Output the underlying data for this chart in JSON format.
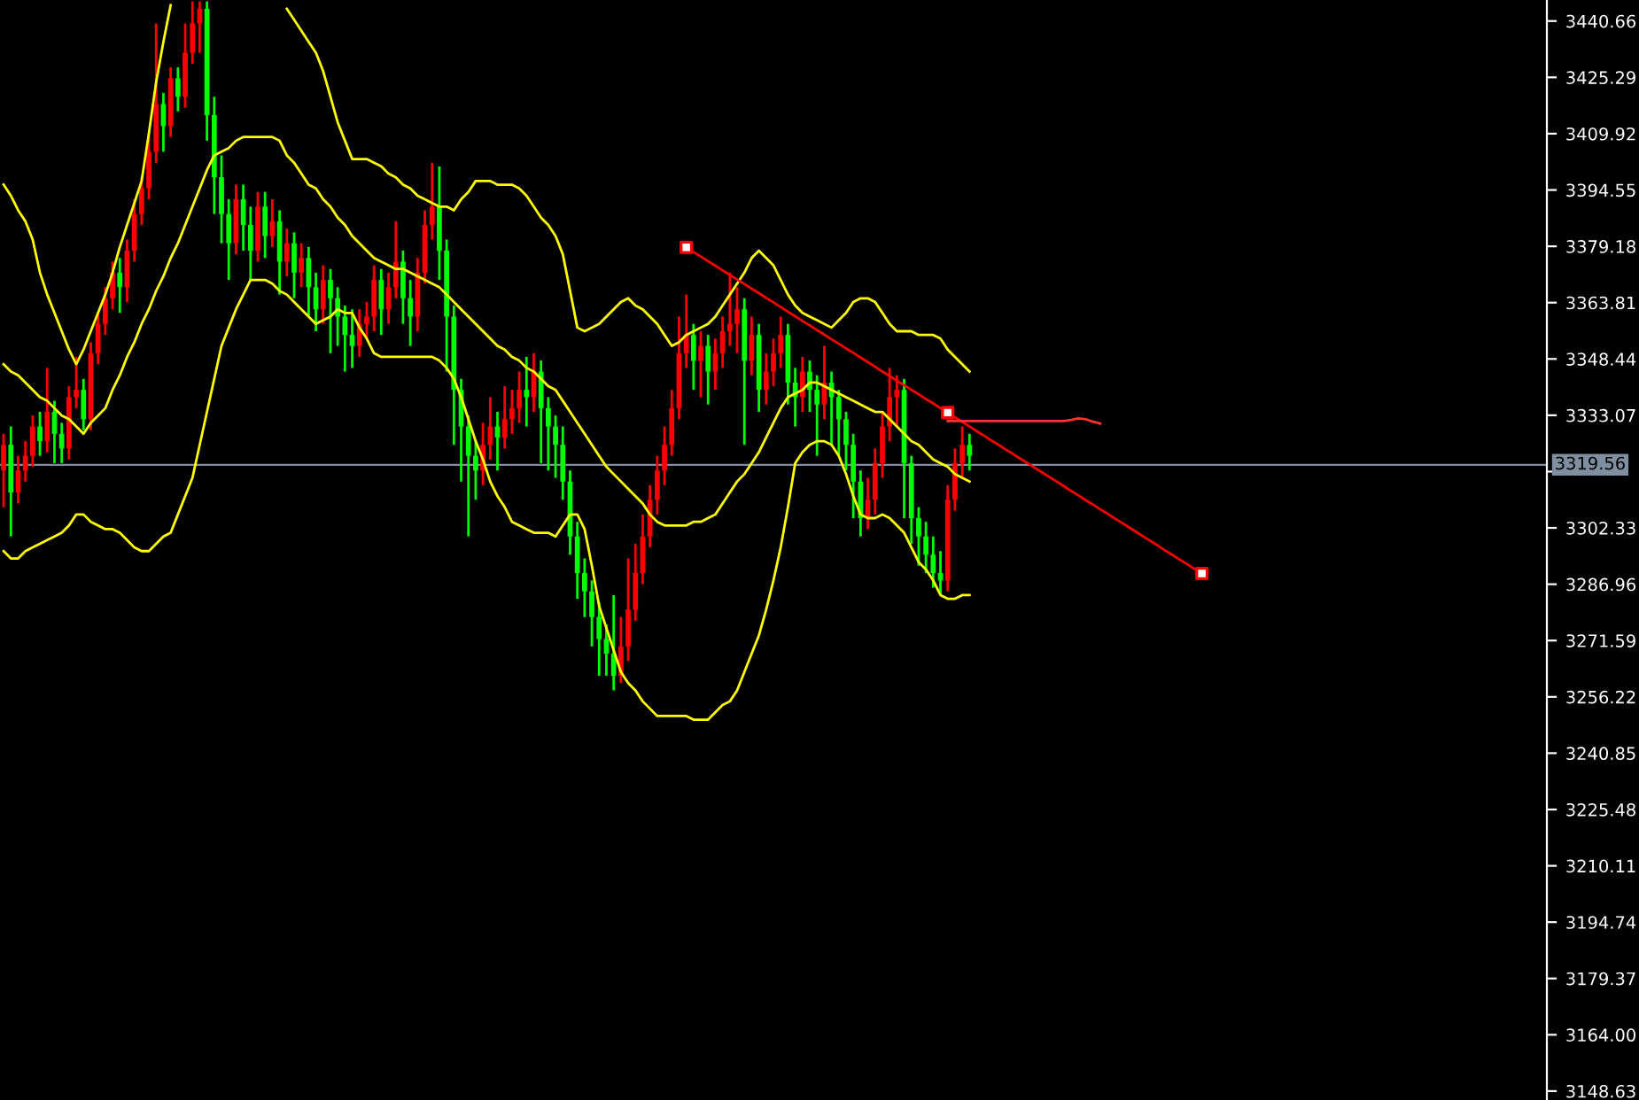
{
  "chart_data": {
    "type": "candlestick",
    "categories": [
      null,
      null,
      null,
      null,
      null,
      null,
      null,
      null,
      null,
      null,
      null,
      null,
      null,
      null,
      null,
      null,
      null,
      null,
      null,
      null,
      null,
      null,
      null,
      null,
      null,
      null,
      null,
      null,
      null,
      null,
      null,
      null,
      null,
      null,
      null,
      null,
      null,
      null,
      null,
      null,
      null,
      null,
      null,
      null,
      null,
      null,
      null,
      null,
      null,
      null,
      null,
      null,
      null,
      null,
      null,
      null,
      null,
      null,
      null,
      null,
      null,
      null,
      null,
      null,
      null,
      null,
      null,
      null,
      null,
      null,
      null,
      null,
      null,
      null,
      null,
      null,
      null,
      null,
      null,
      null,
      null,
      null,
      null,
      null,
      null,
      null,
      null,
      null,
      null,
      null,
      null,
      null,
      null,
      null,
      null,
      null,
      null,
      null,
      null,
      null,
      null,
      null,
      null,
      null,
      null,
      null,
      null,
      null,
      null,
      null,
      null,
      null,
      null,
      null,
      null,
      null,
      null,
      null,
      null,
      null,
      null,
      null,
      null,
      null,
      null,
      null,
      null,
      null,
      null,
      null,
      null,
      null,
      null,
      null,
      null,
      null,
      null,
      null,
      null,
      null,
      null,
      null,
      null,
      null,
      null,
      null,
      null,
      null,
      null,
      null,
      null,
      null,
      null,
      null,
      null,
      null,
      null,
      null,
      null,
      null,
      null,
      null,
      null,
      null,
      null,
      null,
      null,
      null,
      null,
      null,
      null,
      null,
      null,
      null,
      null,
      null,
      null,
      null,
      null,
      null,
      null,
      null,
      null,
      null,
      null,
      null,
      null,
      null,
      null,
      null,
      null,
      null,
      null,
      null,
      null,
      null,
      null,
      null,
      null,
      null,
      null,
      null,
      null,
      null,
      null,
      null,
      null,
      null,
      null,
      null,
      null,
      null,
      null
    ],
    "ohlc": [
      [
        3318,
        3328,
        3308,
        3325
      ],
      [
        3325,
        3330,
        3300,
        3312
      ],
      [
        3312,
        3322,
        3309,
        3318
      ],
      [
        3318,
        3326,
        3315,
        3322
      ],
      [
        3322,
        3333,
        3319,
        3330
      ],
      [
        3330,
        3334,
        3322,
        3326
      ],
      [
        3326,
        3346,
        3323,
        3334
      ],
      [
        3334,
        3337,
        3320,
        3328
      ],
      [
        3328,
        3331,
        3320,
        3324
      ],
      [
        3324,
        3341,
        3321,
        3338
      ],
      [
        3338,
        3349,
        3335,
        3340
      ],
      [
        3340,
        3343,
        3329,
        3332
      ],
      [
        3332,
        3353,
        3329,
        3350
      ],
      [
        3350,
        3361,
        3347,
        3358
      ],
      [
        3358,
        3368,
        3355,
        3365
      ],
      [
        3365,
        3375,
        3362,
        3372
      ],
      [
        3372,
        3376,
        3361,
        3368
      ],
      [
        3368,
        3381,
        3364,
        3378
      ],
      [
        3378,
        3392,
        3375,
        3388
      ],
      [
        3388,
        3398,
        3385,
        3395
      ],
      [
        3395,
        3410,
        3392,
        3405
      ],
      [
        3405,
        3440,
        3402,
        3418
      ],
      [
        3418,
        3421,
        3405,
        3412
      ],
      [
        3412,
        3428,
        3409,
        3425
      ],
      [
        3425,
        3428,
        3416,
        3420
      ],
      [
        3420,
        3440,
        3417,
        3432
      ],
      [
        3432,
        3446,
        3429,
        3440
      ],
      [
        3440,
        3446,
        3432,
        3444
      ],
      [
        3444,
        3446,
        3408,
        3415
      ],
      [
        3415,
        3420,
        3388,
        3398
      ],
      [
        3398,
        3404,
        3380,
        3388
      ],
      [
        3388,
        3392,
        3370,
        3380
      ],
      [
        3380,
        3396,
        3377,
        3392
      ],
      [
        3392,
        3396,
        3378,
        3385
      ],
      [
        3385,
        3390,
        3370,
        3378
      ],
      [
        3378,
        3394,
        3375,
        3390
      ],
      [
        3390,
        3394,
        3376,
        3382
      ],
      [
        3382,
        3392,
        3379,
        3386
      ],
      [
        3386,
        3389,
        3366,
        3375
      ],
      [
        3375,
        3384,
        3371,
        3380
      ],
      [
        3380,
        3383,
        3365,
        3372
      ],
      [
        3372,
        3380,
        3368,
        3376
      ],
      [
        3376,
        3379,
        3360,
        3368
      ],
      [
        3368,
        3372,
        3356,
        3362
      ],
      [
        3362,
        3374,
        3358,
        3370
      ],
      [
        3370,
        3373,
        3350,
        3365
      ],
      [
        3365,
        3368,
        3352,
        3360
      ],
      [
        3360,
        3363,
        3345,
        3355
      ],
      [
        3355,
        3362,
        3346,
        3352
      ],
      [
        3352,
        3362,
        3349,
        3358
      ],
      [
        3358,
        3364,
        3354,
        3360
      ],
      [
        3360,
        3374,
        3356,
        3370
      ],
      [
        3370,
        3373,
        3355,
        3362
      ],
      [
        3362,
        3372,
        3358,
        3368
      ],
      [
        3368,
        3386,
        3365,
        3375
      ],
      [
        3375,
        3378,
        3358,
        3365
      ],
      [
        3365,
        3370,
        3352,
        3360
      ],
      [
        3360,
        3376,
        3356,
        3372
      ],
      [
        3372,
        3389,
        3369,
        3385
      ],
      [
        3385,
        3402,
        3381,
        3390
      ],
      [
        3390,
        3401,
        3370,
        3378
      ],
      [
        3378,
        3381,
        3345,
        3360
      ],
      [
        3360,
        3363,
        3325,
        3340
      ],
      [
        3340,
        3343,
        3315,
        3330
      ],
      [
        3330,
        3333,
        3300,
        3322
      ],
      [
        3322,
        3326,
        3310,
        3318
      ],
      [
        3318,
        3331,
        3314,
        3325
      ],
      [
        3325,
        3338,
        3321,
        3330
      ],
      [
        3330,
        3334,
        3318,
        3327
      ],
      [
        3327,
        3341,
        3324,
        3332
      ],
      [
        3332,
        3340,
        3328,
        3335
      ],
      [
        3335,
        3345,
        3331,
        3340
      ],
      [
        3340,
        3349,
        3330,
        3338
      ],
      [
        3338,
        3350,
        3334,
        3345
      ],
      [
        3345,
        3348,
        3320,
        3335
      ],
      [
        3335,
        3338,
        3318,
        3330
      ],
      [
        3330,
        3333,
        3316,
        3325
      ],
      [
        3325,
        3330,
        3310,
        3315
      ],
      [
        3315,
        3318,
        3295,
        3300
      ],
      [
        3300,
        3304,
        3283,
        3290
      ],
      [
        3290,
        3294,
        3278,
        3285
      ],
      [
        3285,
        3288,
        3270,
        3278
      ],
      [
        3278,
        3282,
        3262,
        3272
      ],
      [
        3272,
        3276,
        3262,
        3268
      ],
      [
        3268,
        3284,
        3258,
        3262
      ],
      [
        3262,
        3278,
        3260,
        3270
      ],
      [
        3270,
        3294,
        3266,
        3280
      ],
      [
        3280,
        3298,
        3277,
        3290
      ],
      [
        3290,
        3306,
        3287,
        3300
      ],
      [
        3300,
        3314,
        3297,
        3310
      ],
      [
        3310,
        3322,
        3306,
        3318
      ],
      [
        3318,
        3330,
        3314,
        3325
      ],
      [
        3325,
        3340,
        3322,
        3335
      ],
      [
        3335,
        3360,
        3332,
        3350
      ],
      [
        3350,
        3366,
        3346,
        3355
      ],
      [
        3355,
        3358,
        3340,
        3348
      ],
      [
        3348,
        3356,
        3338,
        3352
      ],
      [
        3352,
        3355,
        3336,
        3345
      ],
      [
        3345,
        3354,
        3340,
        3350
      ],
      [
        3350,
        3360,
        3346,
        3356
      ],
      [
        3356,
        3372,
        3352,
        3358
      ],
      [
        3358,
        3368,
        3350,
        3362
      ],
      [
        3362,
        3365,
        3325,
        3348
      ],
      [
        3348,
        3360,
        3344,
        3355
      ],
      [
        3355,
        3358,
        3334,
        3340
      ],
      [
        3340,
        3350,
        3336,
        3345
      ],
      [
        3345,
        3354,
        3341,
        3350
      ],
      [
        3350,
        3360,
        3346,
        3355
      ],
      [
        3355,
        3358,
        3336,
        3342
      ],
      [
        3342,
        3346,
        3330,
        3338
      ],
      [
        3338,
        3349,
        3334,
        3345
      ],
      [
        3345,
        3348,
        3334,
        3340
      ],
      [
        3340,
        3344,
        3322,
        3336
      ],
      [
        3336,
        3352,
        3332,
        3342
      ],
      [
        3342,
        3345,
        3325,
        3338
      ],
      [
        3338,
        3340,
        3322,
        3332
      ],
      [
        3332,
        3334,
        3318,
        3325
      ],
      [
        3325,
        3328,
        3305,
        3315
      ],
      [
        3315,
        3318,
        3300,
        3305
      ],
      [
        3305,
        3316,
        3302,
        3310
      ],
      [
        3310,
        3324,
        3306,
        3320
      ],
      [
        3320,
        3334,
        3316,
        3330
      ],
      [
        3330,
        3346,
        3326,
        3338
      ],
      [
        3338,
        3344,
        3330,
        3340
      ],
      [
        3340,
        3343,
        3305,
        3320
      ],
      [
        3320,
        3322,
        3298,
        3305
      ],
      [
        3305,
        3308,
        3292,
        3300
      ],
      [
        3300,
        3304,
        3290,
        3295
      ],
      [
        3295,
        3300,
        3286,
        3290
      ],
      [
        3290,
        3296,
        3284,
        3288
      ],
      [
        3288,
        3314,
        3285,
        3310
      ],
      [
        3310,
        3324,
        3307,
        3320
      ],
      [
        3320,
        3330,
        3316,
        3325
      ],
      [
        3325,
        3328,
        3318,
        3322
      ],
      null,
      null,
      null,
      null,
      null,
      null,
      null,
      null,
      null,
      null,
      null,
      null,
      null,
      null,
      null,
      null,
      null,
      null,
      null,
      null,
      null,
      null,
      null,
      null,
      null,
      null,
      null,
      null,
      null,
      null,
      null,
      null,
      null,
      null,
      null,
      null,
      null,
      null,
      null,
      null,
      null,
      null,
      null,
      null,
      null,
      null,
      null,
      null,
      null,
      null,
      null,
      null,
      null,
      null,
      null,
      null,
      null,
      null,
      null,
      null,
      null,
      null,
      null,
      null,
      null,
      null,
      null,
      null,
      null,
      null,
      null,
      null,
      null,
      null,
      null,
      null,
      null,
      null,
      null
    ],
    "colors": [
      "#ff0000",
      "#00ff00",
      "#ff0000",
      "#ff0000",
      "#ff0000",
      "#00ff00",
      "#ff0000",
      "#00ff00",
      "#00ff00",
      "#ff0000",
      "#ff0000",
      "#00ff00",
      "#ff0000",
      "#ff0000",
      "#ff0000",
      "#ff0000",
      "#00ff00",
      "#ff0000",
      "#ff0000",
      "#ff0000",
      "#ff0000",
      "#ff0000",
      "#00ff00",
      "#ff0000",
      "#00ff00",
      "#ff0000",
      "#ff0000",
      "#ff0000",
      "#00ff00",
      "#00ff00",
      "#00ff00",
      "#00ff00",
      "#ff0000",
      "#00ff00",
      "#00ff00",
      "#ff0000",
      "#00ff00",
      "#ff0000",
      "#00ff00",
      "#ff0000",
      "#00ff00",
      "#ff0000",
      "#00ff00",
      "#00ff00",
      "#ff0000",
      "#00ff00",
      "#00ff00",
      "#00ff00",
      "#00ff00",
      "#ff0000",
      "#ff0000",
      "#ff0000",
      "#00ff00",
      "#ff0000",
      "#ff0000",
      "#00ff00",
      "#00ff00",
      "#ff0000",
      "#ff0000",
      "#ff0000",
      "#00ff00",
      "#00ff00",
      "#00ff00",
      "#00ff00",
      "#00ff00",
      "#00ff00",
      "#ff0000",
      "#ff0000",
      "#00ff00",
      "#ff0000",
      "#ff0000",
      "#ff0000",
      "#00ff00",
      "#ff0000",
      "#00ff00",
      "#00ff00",
      "#00ff00",
      "#00ff00",
      "#00ff00",
      "#00ff00",
      "#00ff00",
      "#00ff00",
      "#00ff00",
      "#00ff00",
      "#00ff00",
      "#ff0000",
      "#ff0000",
      "#ff0000",
      "#ff0000",
      "#ff0000",
      "#ff0000",
      "#ff0000",
      "#ff0000",
      "#ff0000",
      "#ff0000",
      "#00ff00",
      "#ff0000",
      "#00ff00",
      "#ff0000",
      "#ff0000",
      "#ff0000",
      "#ff0000",
      "#00ff00",
      "#ff0000",
      "#00ff00",
      "#ff0000",
      "#ff0000",
      "#ff0000",
      "#00ff00",
      "#00ff00",
      "#ff0000",
      "#00ff00",
      "#00ff00",
      "#ff0000",
      "#00ff00",
      "#00ff00",
      "#00ff00",
      "#00ff00",
      "#00ff00",
      "#ff0000",
      "#ff0000",
      "#ff0000",
      "#ff0000",
      "#ff0000",
      "#00ff00",
      "#00ff00",
      "#00ff00",
      "#00ff00",
      "#00ff00",
      "#00ff00",
      "#ff0000",
      "#ff0000",
      "#ff0000",
      "#00ff00",
      null,
      null,
      null,
      null,
      null,
      null,
      null,
      null,
      null,
      null,
      null,
      null,
      null,
      null,
      null,
      null,
      null,
      null,
      null,
      null,
      null,
      null,
      null,
      null,
      null,
      null,
      null,
      null,
      null,
      null,
      null,
      null,
      null,
      null,
      null,
      null,
      null,
      null,
      null,
      null,
      null,
      null,
      null,
      null,
      null,
      null,
      null,
      null,
      null,
      null,
      null,
      null,
      null,
      null,
      null,
      null,
      null,
      null,
      null,
      null,
      null,
      null,
      null,
      null,
      null,
      null,
      null,
      null,
      null,
      null,
      null,
      null,
      null,
      null,
      null,
      null,
      null,
      null,
      null
    ],
    "series": [
      {
        "type": "line",
        "color": "#ffff00",
        "values": [
          3347,
          3345,
          3344,
          3342,
          3340,
          3338,
          3337,
          3335,
          3333,
          3332,
          3330,
          3328,
          3331,
          3333,
          3335,
          3340,
          3344,
          3349,
          3353,
          3358,
          3362,
          3367,
          3371,
          3376,
          3380,
          3385,
          3390,
          3395,
          3400,
          3404,
          3405,
          3406,
          3408,
          3409,
          3409,
          3409,
          3409,
          3409,
          3408,
          3404,
          3402,
          3399,
          3396,
          3395,
          3392,
          3390,
          3387,
          3385,
          3382,
          3380,
          3378,
          3376,
          3375,
          3374,
          3373,
          3373,
          3372,
          3371,
          3370,
          3369,
          3368,
          3366,
          3364,
          3362,
          3360,
          3358,
          3356,
          3354,
          3352,
          3351,
          3349,
          3348,
          3346,
          3345,
          3343,
          3341,
          3340,
          3337,
          3334,
          3331,
          3328,
          3325,
          3322,
          3319,
          3317,
          3315,
          3313,
          3311,
          3309,
          3306,
          3304,
          3303,
          3303,
          3303,
          3303,
          3304,
          3304,
          3305,
          3306,
          3309,
          3312,
          3315,
          3317,
          3320,
          3323,
          3327,
          3331,
          3335,
          3338,
          3339,
          3340,
          3342,
          3342,
          3341,
          3340,
          3339,
          3338,
          3337,
          3336,
          3335,
          3334,
          3334,
          3332,
          3330,
          3328,
          3326,
          3325,
          3323,
          3321,
          3320,
          3319,
          3317,
          3316,
          3315,
          null,
          null,
          null,
          null,
          null,
          null,
          null,
          null,
          null,
          null,
          null,
          null,
          null,
          null,
          null,
          null,
          null,
          null,
          null,
          null,
          null,
          null,
          null,
          null,
          null,
          null,
          null,
          null,
          null,
          null,
          null,
          null,
          null,
          null,
          null,
          null,
          null,
          null,
          null,
          null,
          null,
          null,
          null,
          null,
          null,
          null,
          null,
          null,
          null,
          null,
          null,
          null,
          null,
          null,
          null,
          null,
          null,
          null,
          null,
          null,
          null,
          null,
          null,
          null,
          null,
          null,
          null,
          null,
          null,
          null,
          null,
          null,
          null,
          null,
          null,
          null,
          null,
          null,
          null
        ]
      },
      {
        "type": "line",
        "color": "#ffff00",
        "values": [
          3396,
          3393,
          3389,
          3386,
          3381,
          3372,
          3366,
          3361,
          3356,
          3351,
          3347,
          3351,
          3356,
          3361,
          3366,
          3372,
          3379,
          3385,
          3391,
          3397,
          3410,
          3424,
          3435,
          3445,
          null,
          null,
          null,
          null,
          null,
          null,
          null,
          null,
          null,
          null,
          null,
          null,
          null,
          null,
          null,
          3444,
          3441,
          3438,
          3435,
          3432,
          3427,
          3420,
          3413,
          3408,
          3403,
          3403,
          3403,
          3402,
          3401,
          3399,
          3398,
          3396,
          3395,
          3393,
          3392,
          3391,
          3390,
          3390,
          3389,
          3392,
          3394,
          3397,
          3397,
          3397,
          3396,
          3396,
          3396,
          3395,
          3393,
          3390,
          3387,
          3385,
          3382,
          3377,
          3367,
          3357,
          3356,
          3357,
          3358,
          3360,
          3362,
          3364,
          3365,
          3363,
          3362,
          3360,
          3358,
          3355,
          3352,
          3353,
          3355,
          3356,
          3357,
          3358,
          3360,
          3363,
          3366,
          3369,
          3372,
          3376,
          3378,
          3376,
          3374,
          3370,
          3366,
          3363,
          3361,
          3360,
          3359,
          3358,
          3357,
          3359,
          3361,
          3364,
          3365,
          3365,
          3364,
          3361,
          3358,
          3356,
          3356,
          3356,
          3355,
          3355,
          3355,
          3354,
          3351,
          3349,
          3347,
          3345,
          null,
          null,
          null,
          null,
          null,
          null,
          null,
          null,
          null,
          null,
          null,
          null,
          null,
          null,
          null,
          null,
          null,
          null,
          null,
          null,
          null,
          null,
          null,
          null,
          null,
          null,
          null,
          null,
          null,
          null,
          null,
          null,
          null,
          null,
          null,
          null,
          null,
          null,
          null,
          null,
          null,
          null,
          null,
          null,
          null,
          null,
          null,
          null,
          null,
          null,
          null,
          null,
          null,
          null,
          null,
          null,
          null,
          null,
          null,
          null,
          null,
          null,
          null,
          null,
          null,
          null,
          null,
          null,
          null,
          null,
          null,
          null,
          null,
          null,
          null,
          null,
          null,
          null,
          null
        ]
      },
      {
        "type": "line",
        "color": "#ffff00",
        "values": [
          3296,
          3294,
          3294,
          3296,
          3297,
          3298,
          3299,
          3300,
          3301,
          3303,
          3306,
          3306,
          3304,
          3303,
          3302,
          3302,
          3301,
          3299,
          3297,
          3296,
          3296,
          3298,
          3300,
          3301,
          3306,
          3311,
          3316,
          3325,
          3334,
          3343,
          3352,
          3357,
          3362,
          3366,
          3370,
          3370,
          3370,
          3369,
          3367,
          3366,
          3364,
          3362,
          3360,
          3358,
          3359,
          3360,
          3362,
          3361,
          3361,
          3357,
          3354,
          3350,
          3349,
          3349,
          3349,
          3349,
          3349,
          3349,
          3349,
          3349,
          3348,
          3346,
          3343,
          3338,
          3332,
          3326,
          3321,
          3315,
          3311,
          3308,
          3304,
          3303,
          3302,
          3301,
          3301,
          3301,
          3300,
          3303,
          3306,
          3306,
          3302,
          3292,
          3281,
          3275,
          3269,
          3263,
          3260,
          3258,
          3255,
          3253,
          3251,
          3251,
          3251,
          3251,
          3251,
          3250,
          3250,
          3250,
          3252,
          3254,
          3255,
          3258,
          3263,
          3268,
          3273,
          3280,
          3288,
          3297,
          3308,
          3320,
          3323,
          3325,
          3326,
          3326,
          3325,
          3322,
          3317,
          3311,
          3306,
          3305,
          3305,
          3306,
          3305,
          3303,
          3301,
          3297,
          3293,
          3291,
          3288,
          3284,
          3283,
          3283,
          3284,
          3284,
          null,
          null,
          null,
          null,
          null,
          null,
          null,
          null,
          null,
          null,
          null,
          null,
          null,
          null,
          null,
          null,
          null,
          null,
          null,
          null,
          null,
          null,
          null,
          null,
          null,
          null,
          null,
          null,
          null,
          null,
          null,
          null,
          null,
          null,
          null,
          null,
          null,
          null,
          null,
          null,
          null,
          null,
          null,
          null,
          null,
          null,
          null,
          null,
          null,
          null,
          null,
          null,
          null,
          null,
          null,
          null,
          null,
          null,
          null,
          null,
          null,
          null,
          null,
          null,
          null,
          null,
          null,
          null,
          null,
          null,
          null,
          null,
          null,
          null,
          null,
          null,
          null,
          null,
          null
        ]
      },
      {
        "type": "line",
        "color": "#ff0000",
        "values": [
          null,
          null,
          null,
          null,
          null,
          null,
          null,
          null,
          null,
          null,
          null,
          null,
          null,
          null,
          null,
          null,
          null,
          null,
          null,
          null,
          null,
          null,
          null,
          null,
          null,
          null,
          null,
          null,
          null,
          null,
          null,
          null,
          null,
          null,
          null,
          null,
          null,
          null,
          null,
          null,
          null,
          null,
          null,
          null,
          null,
          null,
          null,
          null,
          null,
          null,
          null,
          null,
          null,
          null,
          null,
          null,
          null,
          null,
          null,
          null,
          null,
          null,
          null,
          null,
          null,
          null,
          null,
          null,
          null,
          null,
          null,
          null,
          null,
          null,
          null,
          null,
          null,
          null,
          null,
          null,
          null,
          null,
          null,
          null,
          null,
          null,
          null,
          null,
          null,
          null,
          null,
          null,
          null,
          null,
          3378.9,
          3377.6,
          3376.4,
          3375.1,
          3373.9,
          3372.6,
          3371.4,
          3370.1,
          3368.9,
          3367.6,
          3366.4,
          3365.1,
          3363.9,
          3362.6,
          3361.3,
          3360.1,
          3358.8,
          3357.6,
          3356.3,
          3355.1,
          3353.8,
          3352.6,
          3351.3,
          3350.1,
          3348.8,
          3347.6,
          3346.3,
          3345.0,
          3343.8,
          3342.5,
          3341.3,
          3340.0,
          3338.8,
          3337.5,
          3336.3,
          3335.0,
          3333.8,
          3332.5,
          3331.3,
          3330.0,
          3328.7,
          3327.5,
          3326.2,
          3325.0,
          3323.7,
          3322.5,
          3321.2,
          3320.0,
          3318.7,
          3317.5,
          3316.2,
          3315.0,
          3313.7,
          3312.4,
          3311.2,
          3309.9,
          3308.7,
          3307.4,
          3306.2,
          3304.9,
          3303.7,
          3302.4,
          3301.2,
          3299.9,
          3298.7,
          3297.4,
          3296.1,
          3294.9,
          3293.6,
          3292.4,
          3291.1,
          3289.9,
          null,
          null,
          null,
          null,
          null,
          null,
          null,
          null,
          null,
          null,
          null,
          null,
          null,
          null,
          null,
          null,
          null,
          null,
          null,
          null,
          null,
          null,
          null,
          null,
          null,
          null,
          null,
          null,
          null,
          null,
          null,
          null,
          null,
          null,
          null,
          null,
          null,
          null,
          null,
          null,
          null,
          null,
          null,
          null,
          null,
          null,
          null
        ]
      },
      {
        "type": "scatter",
        "color": "#ff0000",
        "marker": "square",
        "values": [
          null,
          null,
          null,
          null,
          null,
          null,
          null,
          null,
          null,
          null,
          null,
          null,
          null,
          null,
          null,
          null,
          null,
          null,
          null,
          null,
          null,
          null,
          null,
          null,
          null,
          null,
          null,
          null,
          null,
          null,
          null,
          null,
          null,
          null,
          null,
          null,
          null,
          null,
          null,
          null,
          null,
          null,
          null,
          null,
          null,
          null,
          null,
          null,
          null,
          null,
          null,
          null,
          null,
          null,
          null,
          null,
          null,
          null,
          null,
          null,
          null,
          null,
          null,
          null,
          null,
          null,
          null,
          null,
          null,
          null,
          null,
          null,
          null,
          null,
          null,
          null,
          null,
          null,
          null,
          null,
          null,
          null,
          null,
          null,
          null,
          null,
          null,
          null,
          null,
          null,
          null,
          null,
          null,
          null,
          3378.9,
          null,
          null,
          null,
          null,
          null,
          null,
          null,
          null,
          null,
          null,
          null,
          null,
          null,
          null,
          null,
          null,
          null,
          null,
          null,
          null,
          null,
          null,
          null,
          null,
          null,
          null,
          null,
          null,
          null,
          null,
          null,
          null,
          null,
          null,
          null,
          3333.8,
          null,
          null,
          null,
          null,
          null,
          null,
          null,
          null,
          null,
          null,
          null,
          null,
          null,
          null,
          null,
          null,
          null,
          null,
          null,
          null,
          null,
          null,
          null,
          null,
          null,
          null,
          null,
          null,
          null,
          null,
          null,
          null,
          null,
          null,
          3289.9,
          null,
          null,
          null,
          null,
          null,
          null,
          null,
          null,
          null,
          null,
          null,
          null,
          null,
          null,
          null,
          null,
          null,
          null,
          null,
          null,
          null,
          null,
          null,
          null,
          null,
          null,
          null,
          null,
          null,
          null,
          null,
          null,
          null,
          null,
          null,
          null,
          null,
          null,
          null,
          null,
          null,
          null,
          null,
          null,
          null,
          null,
          null
        ]
      },
      {
        "type": "line",
        "color": "#ff3030",
        "values": [
          null,
          null,
          null,
          null,
          null,
          null,
          null,
          null,
          null,
          null,
          null,
          null,
          null,
          null,
          null,
          null,
          null,
          null,
          null,
          null,
          null,
          null,
          null,
          null,
          null,
          null,
          null,
          null,
          null,
          null,
          null,
          null,
          null,
          null,
          null,
          null,
          null,
          null,
          null,
          null,
          null,
          null,
          null,
          null,
          null,
          null,
          null,
          null,
          null,
          null,
          null,
          null,
          null,
          null,
          null,
          null,
          null,
          null,
          null,
          null,
          null,
          null,
          null,
          null,
          null,
          null,
          null,
          null,
          null,
          null,
          null,
          null,
          null,
          null,
          null,
          null,
          null,
          null,
          null,
          null,
          null,
          null,
          null,
          null,
          null,
          null,
          null,
          null,
          null,
          null,
          null,
          null,
          null,
          null,
          null,
          null,
          null,
          null,
          null,
          null,
          null,
          null,
          null,
          null,
          null,
          null,
          null,
          null,
          null,
          null,
          null,
          null,
          null,
          null,
          null,
          null,
          null,
          null,
          null,
          null,
          null,
          null,
          null,
          null,
          null,
          null,
          null,
          null,
          null,
          null,
          3331.5,
          3331.5,
          3331.5,
          3331.5,
          3331.5,
          3331.5,
          3331.5,
          3331.5,
          3331.5,
          3331.5,
          3331.5,
          3331.5,
          3331.5,
          3331.5,
          3331.5,
          3331.5,
          3331.5,
          3331.8,
          3332.2,
          3332.0,
          3331.3,
          3330.8,
          null,
          null,
          null,
          null,
          null,
          null,
          null,
          null,
          null,
          null,
          null,
          null,
          null,
          null,
          null,
          null,
          null,
          null,
          null,
          null,
          null,
          null,
          null,
          null,
          null,
          null,
          null,
          null,
          null,
          null,
          null,
          null,
          null,
          null,
          null,
          null,
          null,
          null,
          null,
          null,
          null,
          null,
          null,
          null,
          null,
          null,
          null,
          null,
          null,
          null,
          null,
          null,
          null,
          null,
          null,
          null,
          null,
          null,
          null,
          null,
          null
        ]
      }
    ],
    "ylim": [
      3146.2,
      3446.4
    ],
    "yticks": [
      {
        "value": 3440.66,
        "label": "3440.66"
      },
      {
        "value": 3425.29,
        "label": "3425.29"
      },
      {
        "value": 3409.92,
        "label": "3409.92"
      },
      {
        "value": 3394.55,
        "label": "3394.55"
      },
      {
        "value": 3379.18,
        "label": "3379.18"
      },
      {
        "value": 3363.81,
        "label": "3363.81"
      },
      {
        "value": 3348.44,
        "label": "3348.44"
      },
      {
        "value": 3333.07,
        "label": "3333.07"
      },
      {
        "value": 3317.7,
        "label": null
      },
      {
        "value": 3302.33,
        "label": "3302.33"
      },
      {
        "value": 3286.96,
        "label": "3286.96"
      },
      {
        "value": 3271.59,
        "label": "3271.59"
      },
      {
        "value": 3256.22,
        "label": "3256.22"
      },
      {
        "value": 3240.85,
        "label": "3240.85"
      },
      {
        "value": 3225.48,
        "label": "3225.48"
      },
      {
        "value": 3210.11,
        "label": "3210.11"
      },
      {
        "value": 3194.74,
        "label": "3194.74"
      },
      {
        "value": 3179.37,
        "label": "3179.37"
      },
      {
        "value": 3164.0,
        "label": "3164.00"
      },
      {
        "value": 3148.63,
        "label": "3148.63"
      }
    ],
    "ref_lines": [
      {
        "axis": "y",
        "value": 3319.56,
        "label": "3319.56",
        "color": "#7f8fa0"
      }
    ],
    "tick_labels": "y",
    "grid": false
  }
}
